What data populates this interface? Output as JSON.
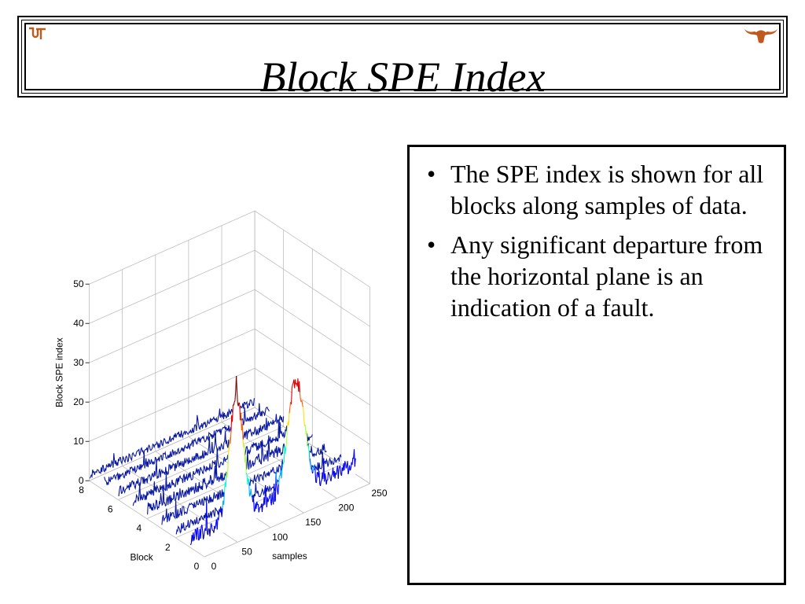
{
  "slide": {
    "title": "Block SPE Index",
    "ut_logo_text": "UT"
  },
  "chart_data": {
    "type": "line",
    "projection": "3d-waterfall",
    "zlabel": "Block SPE index",
    "xlabel": "samples",
    "ylabel": "Block",
    "zlim": [
      0,
      50
    ],
    "xlim": [
      0,
      250
    ],
    "ylim": [
      0,
      8
    ],
    "z_ticks": [
      "0",
      "10",
      "20",
      "30",
      "40",
      "50"
    ],
    "x_ticks": [
      "0",
      "50",
      "100",
      "150",
      "200",
      "250"
    ],
    "y_ticks": [
      "0",
      "2",
      "4",
      "6",
      "8"
    ],
    "grid": true,
    "colormap": [
      "#00008f",
      "#0000ff",
      "#00b0ff",
      "#00ffd0",
      "#b0ff40",
      "#ffe000",
      "#ff6000",
      "#e00000",
      "#800000"
    ],
    "series": [
      {
        "block": 1,
        "baseline": 2.5,
        "noise": 2.0,
        "peaks": [
          {
            "center": 70,
            "height": 30.5,
            "width": 15
          },
          {
            "center": 160,
            "height": 27.5,
            "width": 18
          }
        ]
      },
      {
        "block": 2,
        "baseline": 2.0,
        "noise": 1.2,
        "peaks": []
      },
      {
        "block": 3,
        "baseline": 2.0,
        "noise": 1.2,
        "peaks": []
      },
      {
        "block": 4,
        "baseline": 2.5,
        "noise": 1.5,
        "peaks": []
      },
      {
        "block": 5,
        "baseline": 2.0,
        "noise": 1.2,
        "peaks": []
      },
      {
        "block": 6,
        "baseline": 2.0,
        "noise": 1.2,
        "peaks": []
      },
      {
        "block": 7,
        "baseline": 1.8,
        "noise": 1.0,
        "peaks": []
      },
      {
        "block": 8,
        "baseline": 1.5,
        "noise": 1.0,
        "peaks": []
      }
    ]
  },
  "bullets": [
    "The SPE index is shown for all blocks along samples of data.",
    "Any significant departure from the horizontal plane is an indication of a fault."
  ]
}
